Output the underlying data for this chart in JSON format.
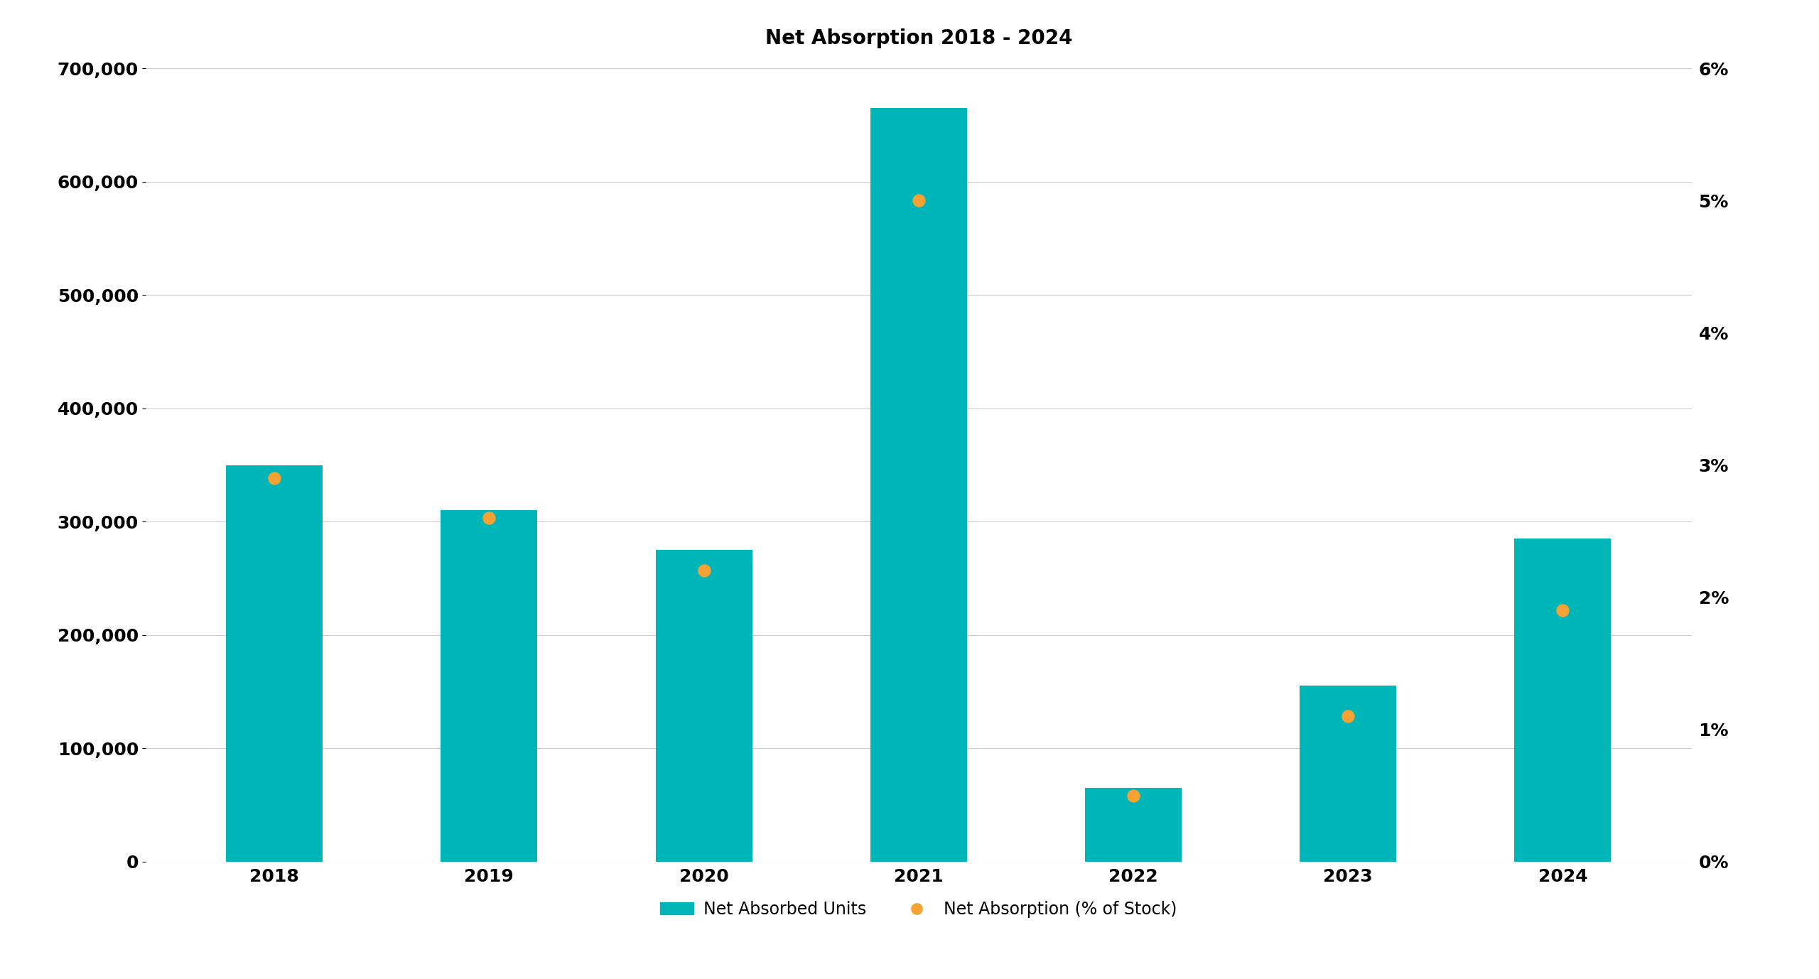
{
  "title": "Net Absorption 2018 - 2024",
  "years": [
    "2018",
    "2019",
    "2020",
    "2021",
    "2022",
    "2023",
    "2024"
  ],
  "net_absorbed_units": [
    350000,
    310000,
    275000,
    665000,
    65000,
    155000,
    285000
  ],
  "net_absorption_pct": [
    0.029,
    0.026,
    0.022,
    0.05,
    0.005,
    0.011,
    0.019
  ],
  "bar_color": "#00B5B8",
  "dot_color": "#F4A233",
  "background_color": "#FFFFFF",
  "ylim_left": [
    0,
    700000
  ],
  "ylim_right": [
    0,
    0.06
  ],
  "yticks_left": [
    0,
    100000,
    200000,
    300000,
    400000,
    500000,
    600000,
    700000
  ],
  "yticks_right": [
    0.0,
    0.01,
    0.02,
    0.03,
    0.04,
    0.05,
    0.06
  ],
  "title_fontsize": 20,
  "tick_fontsize": 18,
  "legend_fontsize": 17,
  "bar_width": 0.45
}
